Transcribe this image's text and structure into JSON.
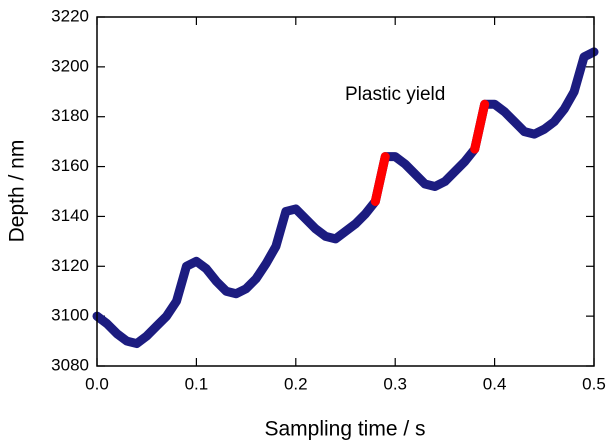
{
  "chart_data": {
    "type": "line",
    "xlabel": "Sampling time / s",
    "ylabel": "Depth / nm",
    "x": [
      0,
      0.01,
      0.02,
      0.03,
      0.04,
      0.05,
      0.06,
      0.07,
      0.08,
      0.09,
      0.1,
      0.11,
      0.12,
      0.13,
      0.14,
      0.15,
      0.16,
      0.17,
      0.18,
      0.19,
      0.2,
      0.21,
      0.22,
      0.23,
      0.24,
      0.25,
      0.26,
      0.27,
      0.28,
      0.29,
      0.3,
      0.31,
      0.32,
      0.33,
      0.34,
      0.35,
      0.36,
      0.37,
      0.38,
      0.39,
      0.4,
      0.41,
      0.42,
      0.43,
      0.44,
      0.45,
      0.46,
      0.47,
      0.48,
      0.49,
      0.5
    ],
    "series": [
      {
        "color": "#1c1c80",
        "values": [
          3100,
          3097,
          3093,
          3090,
          3089,
          3092,
          3096,
          3100,
          3106,
          3120,
          3122,
          3119,
          3114,
          3110,
          3109,
          3111,
          3115,
          3121,
          3128,
          3142,
          3143,
          3139,
          3135,
          3132,
          3131,
          3134,
          3137,
          3141,
          3146,
          3164,
          3164,
          3161,
          3157,
          3153,
          3152,
          3154,
          3158,
          3162,
          3167,
          3185,
          3185,
          3182,
          3178,
          3174,
          3173,
          3175,
          3178,
          3183,
          3190,
          3204,
          3206
        ]
      },
      {
        "color": "#ff0000",
        "values": [
          null,
          null,
          null,
          null,
          null,
          null,
          null,
          null,
          null,
          null,
          null,
          null,
          null,
          null,
          null,
          null,
          null,
          null,
          null,
          null,
          null,
          null,
          null,
          null,
          null,
          null,
          null,
          null,
          3146,
          3164,
          null,
          null,
          null,
          null,
          null,
          null,
          null,
          null,
          3167,
          3185,
          null,
          null,
          null,
          null,
          null,
          null,
          null,
          null,
          null,
          null,
          null
        ]
      }
    ],
    "annotations": [
      {
        "text": "Plastic yield",
        "color": "#ff0000"
      }
    ],
    "xlim": [
      0,
      0.5
    ],
    "xticks": [
      {
        "value": 0,
        "label": "0.0"
      },
      0.1,
      0.2,
      0.3,
      0.4,
      0.5
    ],
    "ylim": [
      3080,
      3220
    ],
    "yticks": [
      3080,
      3100,
      3120,
      3140,
      3160,
      3180,
      3200,
      3220
    ]
  }
}
